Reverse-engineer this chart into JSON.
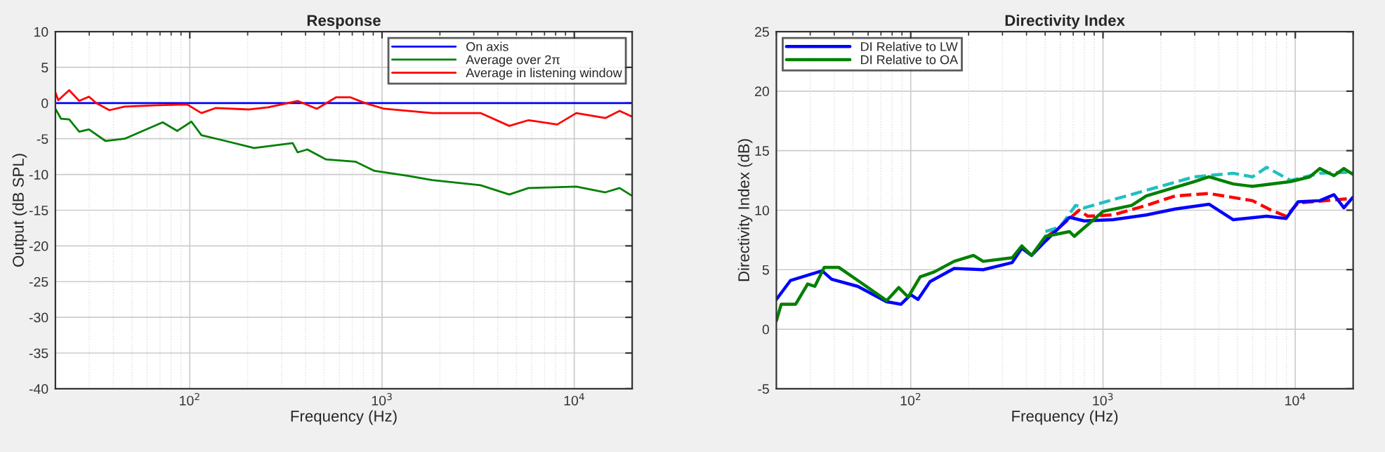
{
  "chart_data": [
    {
      "type": "line",
      "title": "Response",
      "xlabel": "Frequency (Hz)",
      "ylabel": "Output (dB SPL)",
      "log": "x",
      "xlim": [
        20,
        20000
      ],
      "xticks": [
        {
          "value": 100,
          "label": "10$^{2}$"
        },
        {
          "value": 1000,
          "label": "10$^{3}$"
        },
        {
          "value": 10000,
          "label": "10$^{4}$"
        }
      ],
      "ylim": [
        -40,
        10
      ],
      "yticks": [
        -40,
        -35,
        -30,
        -25,
        -20,
        -15,
        -10,
        -5,
        0,
        5,
        10
      ],
      "grid": true,
      "legend": "top right",
      "series": [
        {
          "name": "On axis",
          "color": "#0000ff",
          "x": [
            20,
            20000
          ],
          "values": [
            0,
            0
          ]
        },
        {
          "name": "Average over 2π",
          "color": "#008000",
          "x": [
            20,
            21.4,
            23.6,
            26.6,
            29.9,
            36.4,
            45.8,
            72.3,
            86,
            102,
            115,
            153,
            216,
            343,
            364,
            409,
            512,
            727,
            913,
            1370,
            1826,
            3250,
            4590,
            5780,
            10240,
            14500,
            17200,
            20000
          ],
          "values": [
            -0.8,
            -2.2,
            -2.3,
            -4.0,
            -3.7,
            -5.3,
            -5.0,
            -2.7,
            -3.9,
            -2.6,
            -4.5,
            -5.3,
            -6.3,
            -5.6,
            -6.9,
            -6.5,
            -7.9,
            -8.2,
            -9.5,
            -10.2,
            -10.8,
            -11.5,
            -12.8,
            -11.9,
            -11.7,
            -12.5,
            -11.9,
            -13.0
          ]
        },
        {
          "name": "Average in listening window",
          "color": "#ff0000",
          "x": [
            20,
            20.7,
            23.6,
            26.6,
            29.9,
            32.6,
            38.2,
            45.8,
            68.5,
            97,
            115,
            136,
            204,
            256,
            364,
            458,
            576,
            686,
            816,
            1025,
            1826,
            3250,
            4590,
            5780,
            8150,
            10240,
            14500,
            17200,
            20000
          ],
          "values": [
            1.5,
            0.4,
            1.8,
            0.3,
            0.9,
            0,
            -1.0,
            -0.5,
            -0.3,
            -0.2,
            -1.4,
            -0.7,
            -0.9,
            -0.6,
            0.3,
            -0.8,
            0.8,
            0.8,
            0,
            -0.8,
            -1.4,
            -1.4,
            -3.2,
            -2.4,
            -3.0,
            -1.4,
            -2.1,
            -1.1,
            -1.9
          ]
        }
      ]
    },
    {
      "type": "line",
      "title": "Directivity Index",
      "xlabel": "Frequency (Hz)",
      "ylabel": "Directivity Index (dB)",
      "log": "x",
      "xlim": [
        20,
        20000
      ],
      "xticks": [
        {
          "value": 100,
          "label": "10$^{2}$"
        },
        {
          "value": 1000,
          "label": "10$^{3}$"
        },
        {
          "value": 10000,
          "label": "10$^{4}$"
        }
      ],
      "ylim": [
        -5,
        25
      ],
      "yticks": [
        -5,
        0,
        5,
        10,
        15,
        20,
        25
      ],
      "grid": true,
      "legend": "top left",
      "series": [
        {
          "color": "#ff0000",
          "line_style": "dashed",
          "x": [
            502,
            598,
            751,
            832,
            1125,
            1680,
            2380,
            3560,
            5990,
            7500,
            8950,
            10330,
            20000
          ],
          "values": [
            7.7,
            8.6,
            10.0,
            9.5,
            9.6,
            10.4,
            11.2,
            11.4,
            10.8,
            10.0,
            9.5,
            10.6,
            11.0
          ]
        },
        {
          "color": "#20c0c0",
          "line_style": "dashed",
          "x": [
            502,
            598,
            720,
            798,
            2980,
            4760,
            5990,
            7100,
            9440,
            13420,
            20000
          ],
          "values": [
            8.2,
            8.6,
            10.4,
            10.2,
            12.8,
            13.1,
            12.8,
            13.6,
            12.5,
            13.1,
            13.2
          ]
        },
        {
          "name": "DI Relative to LW",
          "color": "#0000ff",
          "x": [
            20,
            23.7,
            29.9,
            34.6,
            38.8,
            53,
            75,
            89,
            100,
            109,
            126,
            168,
            238,
            337,
            378,
            425,
            502,
            598,
            670,
            798,
            1125,
            1680,
            2380,
            3560,
            4760,
            7100,
            8950,
            10330,
            13420,
            15900,
            17900,
            20000
          ],
          "values": [
            2.5,
            4.1,
            4.6,
            4.9,
            4.2,
            3.6,
            2.3,
            2.1,
            2.9,
            2.5,
            4.0,
            5.1,
            5.0,
            5.6,
            6.8,
            6.2,
            7.4,
            8.6,
            9.4,
            9.1,
            9.2,
            9.6,
            10.1,
            10.5,
            9.2,
            9.5,
            9.3,
            10.7,
            10.8,
            11.3,
            10.2,
            11.1
          ]
        },
        {
          "name": "DI Relative to OA",
          "color": "#008000",
          "x": [
            20,
            21.2,
            25.2,
            29.1,
            31.7,
            35.5,
            42.2,
            53,
            75,
            86.5,
            97,
            112,
            132,
            168,
            212,
            238,
            337,
            378,
            425,
            502,
            670,
            709,
            893,
            1000,
            1410,
            1680,
            2980,
            3560,
            4760,
            5990,
            9440,
            11900,
            13400,
            15900,
            17900,
            20000
          ],
          "values": [
            0.7,
            2.1,
            2.1,
            3.8,
            3.6,
            5.2,
            5.2,
            4.1,
            2.4,
            3.5,
            2.7,
            4.4,
            4.8,
            5.7,
            6.2,
            5.7,
            6.0,
            7.0,
            6.2,
            7.8,
            8.2,
            7.8,
            9.2,
            9.9,
            10.4,
            11.2,
            12.4,
            12.8,
            12.2,
            12.0,
            12.4,
            12.8,
            13.5,
            12.9,
            13.5,
            13.0
          ]
        }
      ]
    }
  ]
}
